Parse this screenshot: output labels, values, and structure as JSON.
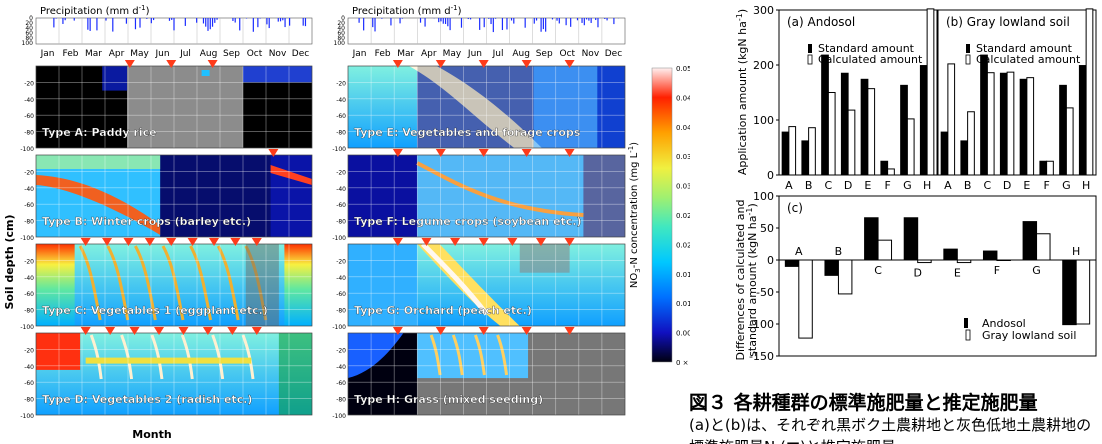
{
  "figure": {
    "month_axis_label": "Month",
    "soil_depth_label": "Soil depth (cm)",
    "precip_label": "Precipitation (mm d",
    "precip_label_sup": "-1",
    "precip_label_close": ")",
    "precip_ticks": [
      "0",
      "20",
      "40",
      "60",
      "80",
      "100"
    ],
    "months_left": [
      "Jan",
      "Feb",
      "Mar",
      "Apr",
      "May",
      "Jun",
      "Jul",
      "Aug",
      "Sep",
      "Oct",
      "Nov",
      "Dec"
    ],
    "months_right": [
      "Jan",
      "Feb",
      "Mar",
      "Apr",
      "May",
      "Jun",
      "Jul",
      "Aug",
      "Sep",
      "Oct",
      "Nov",
      "Dec"
    ],
    "depth_ticks": [
      "0",
      "-20",
      "-40",
      "-60",
      "-80",
      "-100"
    ],
    "panels": [
      {
        "label": "Type A: Paddy rice",
        "fertilization_count": 3
      },
      {
        "label": "Type B: Winter crops (barley etc.)",
        "fertilization_count": 1
      },
      {
        "label": "Type C: Vegetables 1 (eggplant etc.)",
        "fertilization_count": 9
      },
      {
        "label": "Type D: Vegetables 2 (radish etc.)",
        "fertilization_count": 8
      },
      {
        "label": "Type E: Vegetables and forage  crops",
        "fertilization_count": 5
      },
      {
        "label": "Type F: Legume crops (soybean etc.)",
        "fertilization_count": 5
      },
      {
        "label": "Type G: Orchard (peach etc.)",
        "fertilization_count": 7
      },
      {
        "label": "Type H: Grass (mixed seeding)",
        "fertilization_count": 5
      }
    ],
    "colorbar": {
      "title_prefix": "NO",
      "title_sub1": "3",
      "title_mid": "-N",
      "title_sub2": "",
      "title_rest": " concentration (mg L",
      "title_sup": "-1",
      "title_close": ")",
      "ticks": [
        "0.05 × 1000",
        "0.045 × 1000",
        "0.04 × 1000",
        "0.035 × 1000",
        "0.03 × 1000",
        "0.025 × 1000",
        "0.02 × 1000",
        "0.015 × 1000",
        "0.01 × 1000",
        "0.005 × 1000",
        "0 × 1000"
      ]
    }
  },
  "chart_data": [
    {
      "type": "bar",
      "title": "(a) Andosol",
      "categories": [
        "A",
        "B",
        "C",
        "D",
        "E",
        "F",
        "G",
        "H"
      ],
      "series": [
        {
          "name": "Standard amount",
          "values": [
            78,
            62,
            218,
            185,
            174,
            25,
            163,
            199
          ]
        },
        {
          "name": "Calculated amount",
          "values": [
            88,
            86,
            150,
            118,
            157,
            11,
            102,
            302
          ]
        }
      ],
      "ylabel": "Application amount (kgN ha",
      "ylabel_sup": "-1",
      "ylabel_close": ")",
      "ylim": [
        0,
        300
      ],
      "yticks": [
        "0",
        "100",
        "200",
        "300"
      ],
      "legend": "top-right"
    },
    {
      "type": "bar",
      "title": "(b) Gray lowland soil",
      "categories": [
        "A",
        "B",
        "C",
        "D",
        "E",
        "F",
        "G",
        "H"
      ],
      "series": [
        {
          "name": "Standard amount",
          "values": [
            78,
            62,
            218,
            185,
            174,
            25,
            163,
            199
          ]
        },
        {
          "name": "Calculated amount",
          "values": [
            202,
            115,
            186,
            187,
            177,
            25,
            122,
            302
          ]
        }
      ],
      "ylim": [
        0,
        300
      ],
      "legend": "top-right"
    },
    {
      "type": "bar",
      "title": "(c)",
      "categories": [
        "A",
        "B",
        "C",
        "D",
        "E",
        "F",
        "G",
        "H"
      ],
      "series": [
        {
          "name": "Andosol",
          "values": [
            -10,
            -24,
            66,
            66,
            17,
            14,
            60,
            -101
          ]
        },
        {
          "name": "Gray lowland soil",
          "values": [
            -122,
            -53,
            31,
            -4,
            -4,
            0,
            41,
            -100
          ]
        }
      ],
      "ylabel_line1": "Differences of calculated and",
      "ylabel_line2": "standard amount (kgN ha",
      "ylabel_sup": "-1",
      "ylabel_close": ")",
      "ylim": [
        -150,
        100
      ],
      "yticks": [
        "100",
        "50",
        "0",
        "-50",
        "-100",
        "-150"
      ],
      "legend": "bottom-right"
    }
  ],
  "caption": {
    "title": "図３ 各耕種群の標準施肥量と推定施肥量",
    "body": "(a)と(b)は、それぞれ黒ボク土農耕地と灰色低地土農耕地の標準施肥量N     (■)と推定施肥量"
  }
}
